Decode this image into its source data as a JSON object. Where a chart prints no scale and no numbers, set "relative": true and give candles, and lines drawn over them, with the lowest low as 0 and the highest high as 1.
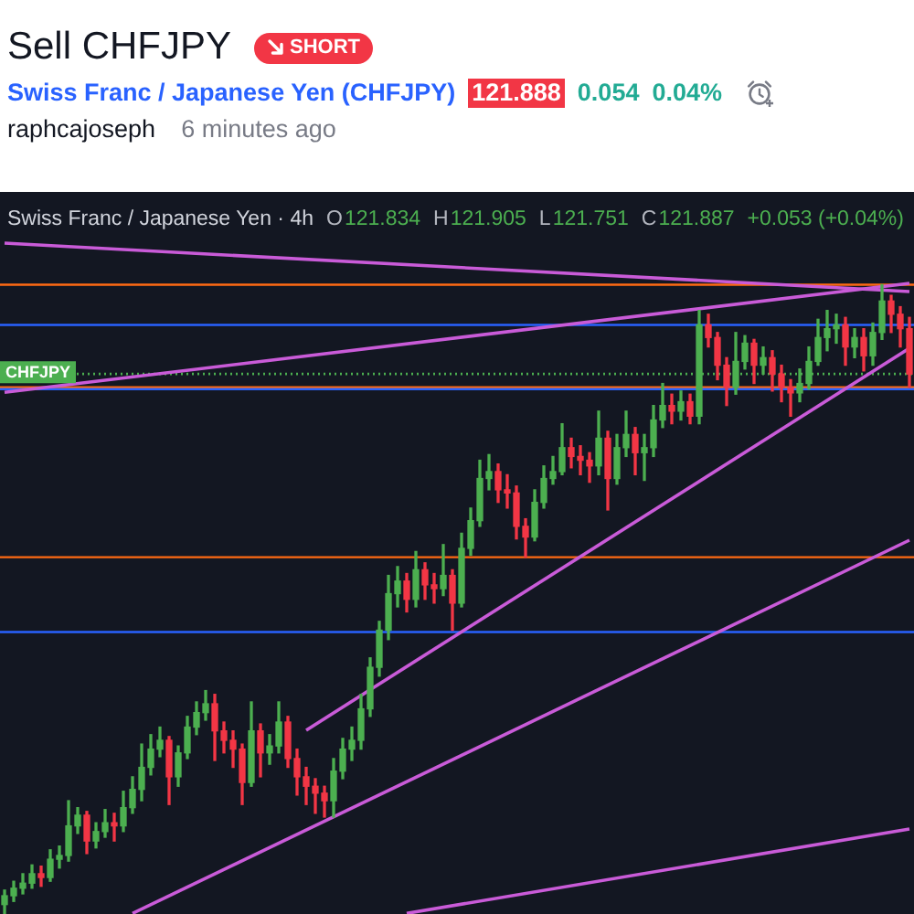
{
  "chart_data": {
    "type": "candlestick",
    "title": "Sell CHFJPY",
    "subtitle": "Swiss Franc / Japanese Yen (CHFJPY)",
    "annotations": [
      "SHORT",
      "121.888",
      "0.054",
      "0.04%",
      "raphcajoseph",
      "6 minutes ago",
      "Swiss Franc / Japanese Yen · 4h",
      "O",
      "121.834",
      "H",
      "121.905",
      "L",
      "121.751",
      "C",
      "121.887",
      "+0.053 (+0.04%)"
    ],
    "relative": true,
    "tick_labels": false,
    "grid": false,
    "legend": false,
    "categories": [
      null,
      null,
      null,
      null,
      null,
      null,
      null,
      null,
      null,
      null,
      null,
      null,
      null,
      null,
      null,
      null,
      null,
      null,
      null,
      null,
      null,
      null,
      null,
      null,
      null,
      null,
      null,
      null,
      null,
      null,
      null,
      null,
      null,
      null,
      null,
      null,
      null,
      null,
      null,
      null,
      null,
      null,
      null,
      null,
      null,
      null,
      null,
      null,
      null,
      null,
      null,
      null,
      null,
      null,
      null,
      null,
      null,
      null,
      null,
      null,
      null,
      null,
      null,
      null,
      null,
      null,
      null,
      null,
      null,
      null,
      null,
      null,
      null,
      null,
      null,
      null,
      null,
      null,
      null,
      null,
      null,
      null,
      null,
      null,
      null,
      null,
      null,
      null,
      null,
      null,
      null,
      null,
      null,
      null,
      null,
      null,
      null,
      null,
      null,
      null
    ],
    "ohlc": [
      [
        0.015,
        0.038,
        0,
        0.029
      ],
      [
        0.029,
        0.052,
        0.02,
        0.041
      ],
      [
        0.041,
        0.064,
        0.032,
        0.049
      ],
      [
        0.049,
        0.078,
        0.041,
        0.064
      ],
      [
        0.064,
        0.076,
        0.044,
        0.058
      ],
      [
        0.058,
        0.102,
        0.052,
        0.087
      ],
      [
        0.087,
        0.108,
        0.073,
        0.093
      ],
      [
        0.093,
        0.18,
        0.084,
        0.14
      ],
      [
        0.14,
        0.169,
        0.128,
        0.157
      ],
      [
        0.157,
        0.163,
        0.096,
        0.116
      ],
      [
        0.116,
        0.145,
        0.105,
        0.131
      ],
      [
        0.131,
        0.166,
        0.122,
        0.145
      ],
      [
        0.145,
        0.16,
        0.116,
        0.14
      ],
      [
        0.14,
        0.195,
        0.131,
        0.169
      ],
      [
        0.169,
        0.218,
        0.16,
        0.198
      ],
      [
        0.198,
        0.27,
        0.18,
        0.233
      ],
      [
        0.233,
        0.285,
        0.221,
        0.262
      ],
      [
        0.262,
        0.297,
        0.25,
        0.276
      ],
      [
        0.276,
        0.282,
        0.174,
        0.218
      ],
      [
        0.218,
        0.267,
        0.203,
        0.256
      ],
      [
        0.256,
        0.314,
        0.247,
        0.297
      ],
      [
        0.297,
        0.337,
        0.285,
        0.32
      ],
      [
        0.32,
        0.355,
        0.308,
        0.334
      ],
      [
        0.334,
        0.349,
        0.244,
        0.291
      ],
      [
        0.291,
        0.305,
        0.256,
        0.276
      ],
      [
        0.276,
        0.291,
        0.233,
        0.262
      ],
      [
        0.262,
        0.27,
        0.174,
        0.209
      ],
      [
        0.209,
        0.337,
        0.203,
        0.291
      ],
      [
        0.291,
        0.302,
        0.218,
        0.256
      ],
      [
        0.256,
        0.285,
        0.238,
        0.267
      ],
      [
        0.267,
        0.337,
        0.256,
        0.305
      ],
      [
        0.305,
        0.314,
        0.233,
        0.247
      ],
      [
        0.247,
        0.262,
        0.189,
        0.218
      ],
      [
        0.218,
        0.233,
        0.174,
        0.203
      ],
      [
        0.203,
        0.215,
        0.16,
        0.192
      ],
      [
        0.192,
        0.203,
        0.154,
        0.18
      ],
      [
        0.18,
        0.247,
        0.154,
        0.227
      ],
      [
        0.227,
        0.279,
        0.215,
        0.262
      ],
      [
        0.262,
        0.297,
        0.244,
        0.276
      ],
      [
        0.276,
        0.349,
        0.262,
        0.326
      ],
      [
        0.326,
        0.407,
        0.314,
        0.392
      ],
      [
        0.392,
        0.465,
        0.378,
        0.451
      ],
      [
        0.451,
        0.538,
        0.436,
        0.509
      ],
      [
        0.509,
        0.552,
        0.488,
        0.529
      ],
      [
        0.529,
        0.541,
        0.48,
        0.5
      ],
      [
        0.5,
        0.576,
        0.488,
        0.547
      ],
      [
        0.547,
        0.558,
        0.5,
        0.523
      ],
      [
        0.523,
        0.541,
        0.494,
        0.517
      ],
      [
        0.517,
        0.587,
        0.506,
        0.538
      ],
      [
        0.538,
        0.547,
        0.451,
        0.494
      ],
      [
        0.494,
        0.605,
        0.488,
        0.581
      ],
      [
        0.581,
        0.645,
        0.57,
        0.625
      ],
      [
        0.625,
        0.721,
        0.616,
        0.692
      ],
      [
        0.692,
        0.73,
        0.674,
        0.703
      ],
      [
        0.703,
        0.715,
        0.654,
        0.674
      ],
      [
        0.674,
        0.698,
        0.645,
        0.669
      ],
      [
        0.669,
        0.68,
        0.596,
        0.616
      ],
      [
        0.616,
        0.628,
        0.567,
        0.599
      ],
      [
        0.599,
        0.674,
        0.593,
        0.654
      ],
      [
        0.654,
        0.712,
        0.645,
        0.692
      ],
      [
        0.692,
        0.727,
        0.683,
        0.703
      ],
      [
        0.703,
        0.779,
        0.698,
        0.741
      ],
      [
        0.741,
        0.756,
        0.709,
        0.727
      ],
      [
        0.727,
        0.744,
        0.698,
        0.721
      ],
      [
        0.721,
        0.733,
        0.686,
        0.712
      ],
      [
        0.712,
        0.799,
        0.698,
        0.756
      ],
      [
        0.756,
        0.767,
        0.642,
        0.692
      ],
      [
        0.692,
        0.762,
        0.683,
        0.741
      ],
      [
        0.741,
        0.799,
        0.727,
        0.762
      ],
      [
        0.762,
        0.773,
        0.698,
        0.733
      ],
      [
        0.733,
        0.762,
        0.689,
        0.741
      ],
      [
        0.741,
        0.808,
        0.727,
        0.785
      ],
      [
        0.785,
        0.843,
        0.773,
        0.808
      ],
      [
        0.808,
        0.826,
        0.779,
        0.799
      ],
      [
        0.799,
        0.831,
        0.785,
        0.814
      ],
      [
        0.814,
        0.826,
        0.779,
        0.791
      ],
      [
        0.791,
        0.959,
        0.779,
        0.936
      ],
      [
        0.936,
        0.953,
        0.901,
        0.916
      ],
      [
        0.916,
        0.924,
        0.849,
        0.872
      ],
      [
        0.872,
        0.884,
        0.808,
        0.837
      ],
      [
        0.837,
        0.924,
        0.826,
        0.878
      ],
      [
        0.878,
        0.919,
        0.866,
        0.907
      ],
      [
        0.907,
        0.913,
        0.843,
        0.872
      ],
      [
        0.872,
        0.901,
        0.858,
        0.884
      ],
      [
        0.884,
        0.895,
        0.831,
        0.858
      ],
      [
        0.858,
        0.872,
        0.814,
        0.837
      ],
      [
        0.837,
        0.849,
        0.791,
        0.828
      ],
      [
        0.828,
        0.866,
        0.814,
        0.843
      ],
      [
        0.843,
        0.901,
        0.834,
        0.878
      ],
      [
        0.878,
        0.945,
        0.872,
        0.916
      ],
      [
        0.916,
        0.959,
        0.895,
        0.93
      ],
      [
        0.93,
        0.953,
        0.907,
        0.936
      ],
      [
        0.936,
        0.948,
        0.872,
        0.901
      ],
      [
        0.901,
        0.93,
        0.884,
        0.916
      ],
      [
        0.916,
        0.93,
        0.863,
        0.887
      ],
      [
        0.887,
        0.939,
        0.872,
        0.924
      ],
      [
        0.924,
        1,
        0.913,
        0.974
      ],
      [
        0.974,
        0.983,
        0.924,
        0.953
      ],
      [
        0.953,
        0.965,
        0.901,
        0.93
      ],
      [
        0.93,
        0.948,
        0.837,
        0.858
      ]
    ],
    "colors": [
      "#4caf50",
      "#4caf50",
      "#4caf50",
      "#4caf50",
      "#f23645",
      "#4caf50",
      "#4caf50",
      "#4caf50",
      "#4caf50",
      "#f23645",
      "#4caf50",
      "#4caf50",
      "#f23645",
      "#4caf50",
      "#4caf50",
      "#4caf50",
      "#4caf50",
      "#4caf50",
      "#f23645",
      "#4caf50",
      "#4caf50",
      "#4caf50",
      "#4caf50",
      "#f23645",
      "#f23645",
      "#f23645",
      "#f23645",
      "#4caf50",
      "#f23645",
      "#4caf50",
      "#4caf50",
      "#f23645",
      "#f23645",
      "#f23645",
      "#f23645",
      "#f23645",
      "#4caf50",
      "#4caf50",
      "#4caf50",
      "#4caf50",
      "#4caf50",
      "#4caf50",
      "#4caf50",
      "#4caf50",
      "#f23645",
      "#4caf50",
      "#f23645",
      "#f23645",
      "#4caf50",
      "#f23645",
      "#4caf50",
      "#4caf50",
      "#4caf50",
      "#4caf50",
      "#f23645",
      "#f23645",
      "#f23645",
      "#f23645",
      "#4caf50",
      "#4caf50",
      "#4caf50",
      "#4caf50",
      "#f23645",
      "#f23645",
      "#f23645",
      "#4caf50",
      "#f23645",
      "#4caf50",
      "#4caf50",
      "#f23645",
      "#4caf50",
      "#4caf50",
      "#4caf50",
      "#f23645",
      "#4caf50",
      "#f23645",
      "#4caf50",
      "#f23645",
      "#f23645",
      "#f23645",
      "#4caf50",
      "#4caf50",
      "#f23645",
      "#4caf50",
      "#f23645",
      "#f23645",
      "#f23645",
      "#4caf50",
      "#4caf50",
      "#4caf50",
      "#4caf50",
      "#4caf50",
      "#f23645",
      "#4caf50",
      "#f23645",
      "#4caf50",
      "#4caf50",
      "#f23645",
      "#f23645",
      "#f23645"
    ],
    "series": [
      {
        "type": "line",
        "color": "#c95bd8",
        "values": [
          1.066,
          null,
          null,
          null,
          null,
          null,
          null,
          null,
          null,
          null,
          null,
          null,
          null,
          null,
          null,
          null,
          null,
          null,
          null,
          null,
          null,
          null,
          null,
          null,
          null,
          null,
          null,
          null,
          null,
          null,
          null,
          null,
          null,
          null,
          null,
          null,
          null,
          null,
          null,
          null,
          null,
          null,
          null,
          null,
          null,
          null,
          null,
          null,
          null,
          null,
          null,
          null,
          null,
          null,
          null,
          null,
          null,
          null,
          null,
          null,
          null,
          null,
          null,
          null,
          null,
          null,
          null,
          null,
          null,
          null,
          null,
          null,
          null,
          null,
          null,
          null,
          null,
          null,
          null,
          null,
          null,
          null,
          null,
          null,
          null,
          null,
          null,
          null,
          null,
          null,
          null,
          null,
          null,
          null,
          null,
          null,
          null,
          null,
          null,
          0.989
        ]
      },
      {
        "type": "line",
        "color": "#c95bd8",
        "values": [
          0.829,
          null,
          null,
          null,
          null,
          null,
          null,
          null,
          null,
          null,
          null,
          null,
          null,
          null,
          null,
          null,
          null,
          null,
          null,
          null,
          null,
          null,
          null,
          null,
          null,
          null,
          null,
          null,
          null,
          null,
          null,
          null,
          null,
          null,
          null,
          null,
          null,
          null,
          null,
          null,
          null,
          null,
          null,
          null,
          null,
          null,
          null,
          null,
          null,
          null,
          null,
          null,
          null,
          null,
          null,
          null,
          null,
          null,
          null,
          null,
          null,
          null,
          null,
          null,
          null,
          null,
          null,
          null,
          null,
          null,
          null,
          null,
          null,
          null,
          null,
          null,
          null,
          null,
          null,
          null,
          null,
          null,
          null,
          null,
          null,
          null,
          null,
          null,
          null,
          null,
          null,
          null,
          null,
          null,
          null,
          null,
          null,
          null,
          null,
          1.002
        ]
      },
      {
        "type": "line",
        "color": "#c95bd8",
        "values": [
          null,
          null,
          null,
          null,
          null,
          null,
          null,
          null,
          null,
          null,
          null,
          null,
          null,
          null,
          null,
          null,
          null,
          null,
          null,
          null,
          null,
          null,
          null,
          null,
          null,
          null,
          null,
          null,
          null,
          null,
          null,
          null,
          null,
          0.292,
          null,
          null,
          null,
          null,
          null,
          null,
          null,
          null,
          null,
          null,
          null,
          null,
          null,
          null,
          null,
          null,
          null,
          null,
          null,
          null,
          null,
          null,
          null,
          null,
          null,
          null,
          null,
          null,
          null,
          null,
          null,
          null,
          null,
          null,
          null,
          null,
          null,
          null,
          null,
          null,
          null,
          null,
          null,
          null,
          null,
          null,
          null,
          null,
          null,
          null,
          null,
          null,
          null,
          null,
          null,
          null,
          null,
          null,
          null,
          null,
          null,
          null,
          null,
          null,
          null,
          0.899
        ]
      },
      {
        "type": "line",
        "color": "#c95bd8",
        "values": [
          null,
          null,
          null,
          null,
          null,
          null,
          null,
          null,
          null,
          null,
          null,
          null,
          null,
          null,
          0.001,
          null,
          null,
          null,
          null,
          null,
          null,
          null,
          null,
          null,
          null,
          null,
          null,
          null,
          null,
          null,
          null,
          null,
          null,
          null,
          null,
          null,
          null,
          null,
          null,
          null,
          null,
          null,
          null,
          null,
          null,
          null,
          null,
          null,
          null,
          null,
          null,
          null,
          null,
          null,
          null,
          null,
          null,
          null,
          null,
          null,
          null,
          null,
          null,
          null,
          null,
          null,
          null,
          null,
          null,
          null,
          null,
          null,
          null,
          null,
          null,
          null,
          null,
          null,
          null,
          null,
          null,
          null,
          null,
          null,
          null,
          null,
          null,
          null,
          null,
          null,
          null,
          null,
          null,
          null,
          null,
          null,
          null,
          null,
          null,
          0.594
        ]
      },
      {
        "type": "line",
        "color": "#c95bd8",
        "values": [
          null,
          null,
          null,
          null,
          null,
          null,
          null,
          null,
          null,
          null,
          null,
          null,
          null,
          null,
          null,
          null,
          null,
          null,
          null,
          null,
          null,
          null,
          null,
          null,
          null,
          null,
          null,
          null,
          null,
          null,
          null,
          null,
          null,
          null,
          null,
          null,
          null,
          null,
          null,
          null,
          null,
          null,
          null,
          null,
          0.001,
          null,
          null,
          null,
          null,
          null,
          null,
          null,
          null,
          null,
          null,
          null,
          null,
          null,
          null,
          null,
          null,
          null,
          null,
          null,
          null,
          null,
          null,
          null,
          null,
          null,
          null,
          null,
          null,
          null,
          null,
          null,
          null,
          null,
          null,
          null,
          null,
          null,
          null,
          null,
          null,
          null,
          null,
          null,
          null,
          null,
          null,
          null,
          null,
          null,
          null,
          null,
          null,
          null,
          null,
          0.135
        ]
      }
    ],
    "ref_lines": [
      {
        "axis": "y",
        "value": 1,
        "color": "#ff6a13"
      },
      {
        "axis": "y",
        "value": 0.936,
        "color": "#2962ff"
      },
      {
        "axis": "y",
        "value": 0.858,
        "label": "CHFJPY",
        "color": "#4caf50",
        "line_style": "dotted"
      },
      {
        "axis": "y",
        "value": 0.837,
        "color": "#ff6a13"
      },
      {
        "axis": "y",
        "value": 0.834,
        "color": "#2962ff"
      },
      {
        "axis": "y",
        "value": 0.567,
        "color": "#ff6a13"
      },
      {
        "axis": "y",
        "value": 0.448,
        "color": "#2962ff"
      }
    ]
  }
}
